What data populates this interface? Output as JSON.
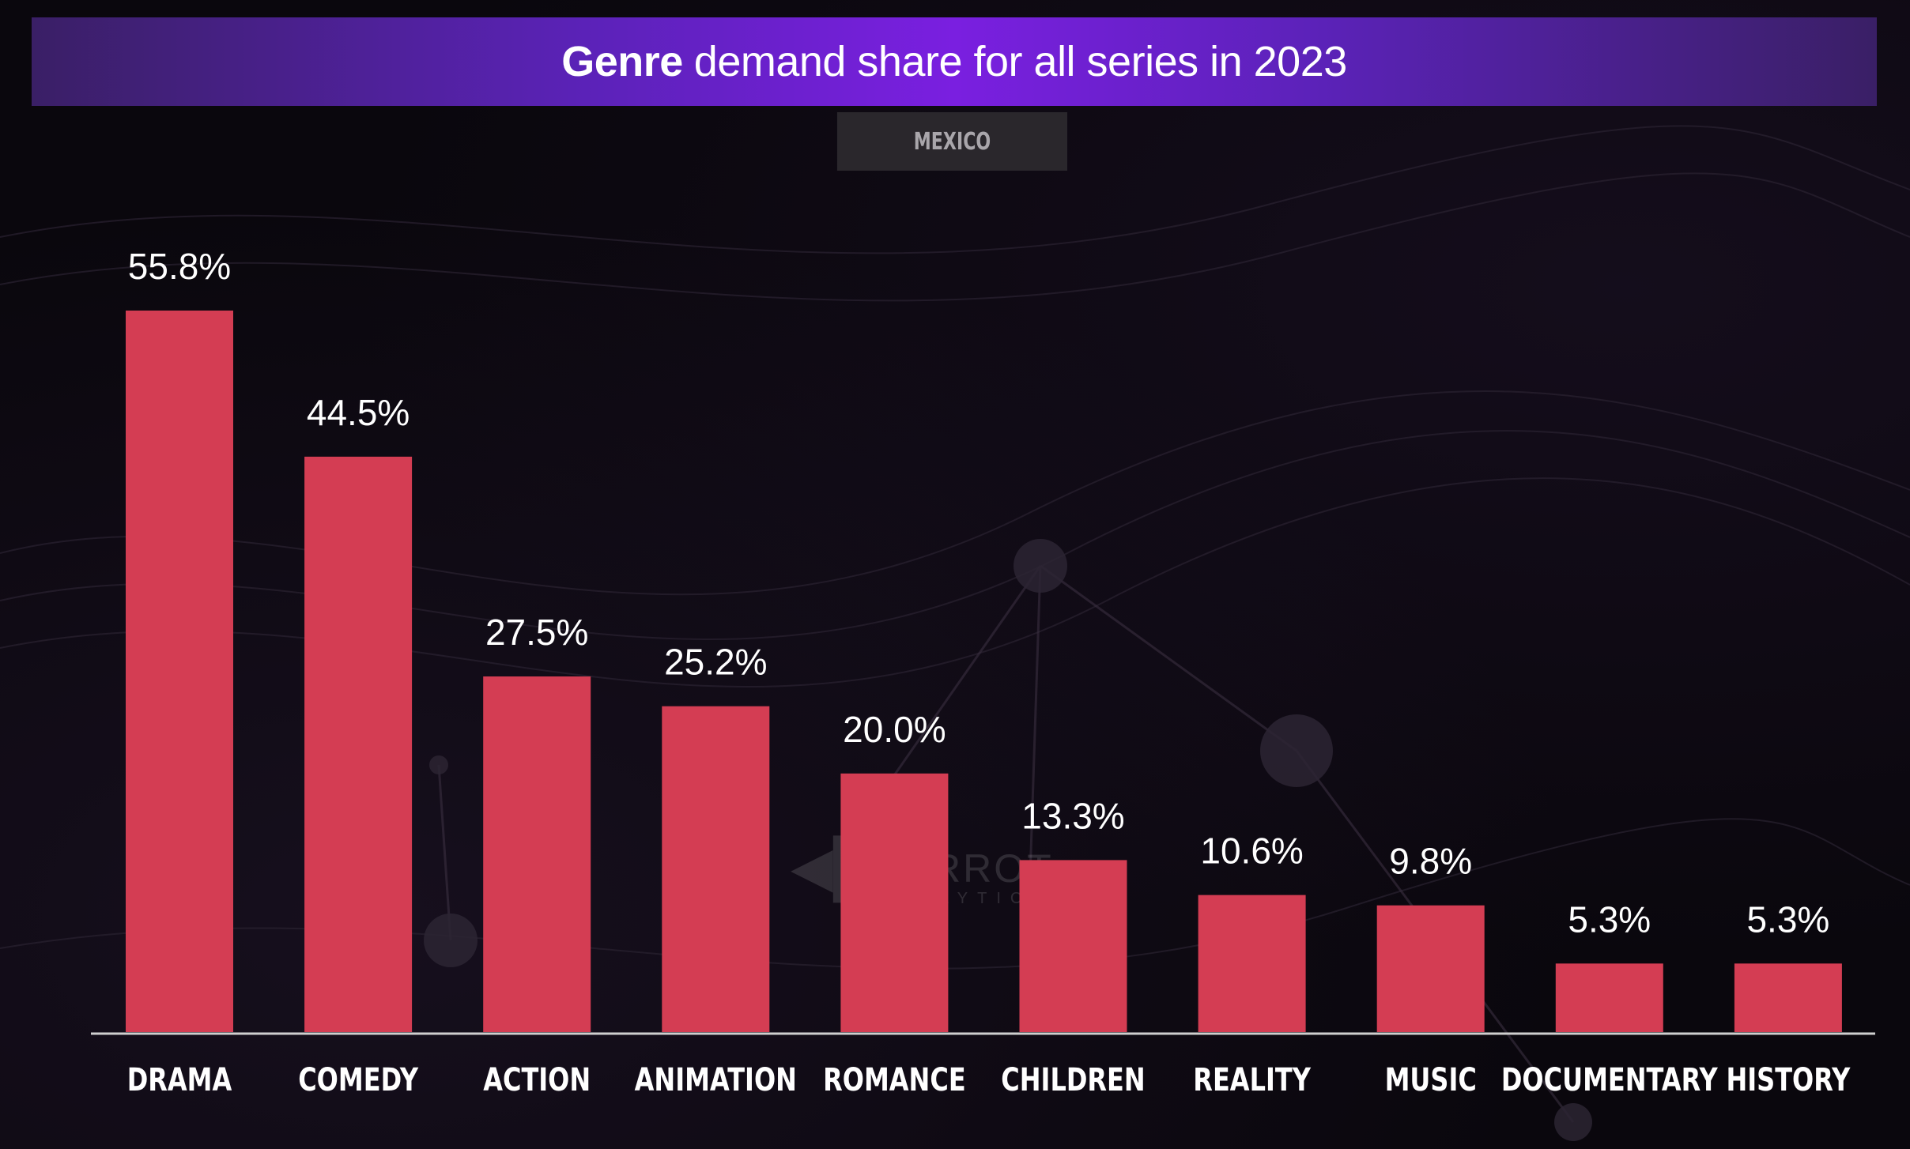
{
  "chart_data": {
    "type": "bar",
    "title_bold": "Genre",
    "title_rest": "demand share for all series in 2023",
    "subtitle": "MEXICO",
    "categories": [
      "DRAMA",
      "COMEDY",
      "ACTION",
      "ANIMATION",
      "ROMANCE",
      "CHILDREN",
      "REALITY",
      "MUSIC",
      "DOCUMENTARY",
      "HISTORY"
    ],
    "values": [
      55.8,
      44.5,
      27.5,
      25.2,
      20.0,
      13.3,
      10.6,
      9.8,
      5.3,
      5.3
    ],
    "value_labels": [
      "55.8%",
      "44.5%",
      "27.5%",
      "25.2%",
      "20.0%",
      "13.3%",
      "10.6%",
      "9.8%",
      "5.3%",
      "5.3%"
    ],
    "xlabel": "",
    "ylabel": "",
    "ylim": [
      0,
      60
    ],
    "grid": false,
    "bar_color": "#d43d53",
    "watermark": {
      "name": "PARROT",
      "sub": "ANALYTICS"
    }
  }
}
